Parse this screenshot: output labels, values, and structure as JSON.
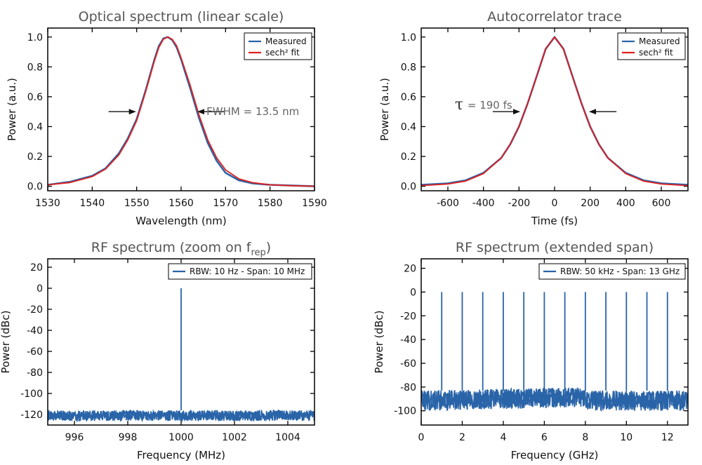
{
  "colors": {
    "measured": "#2a64a8",
    "fit": "#e02020",
    "arrow": "#111111",
    "frame": "#000000"
  },
  "chart_data": [
    {
      "type": "line",
      "title": "Optical spectrum (linear scale)",
      "xlabel": "Wavelength (nm)",
      "ylabel": "Power (a.u.)",
      "xlim": [
        1530,
        1590
      ],
      "ylim": [
        -0.03,
        1.06
      ],
      "xticks": [
        1530,
        1540,
        1550,
        1560,
        1570,
        1580,
        1590
      ],
      "yticks": [
        0.0,
        0.2,
        0.4,
        0.6,
        0.8,
        1.0
      ],
      "legend_position": "top-right",
      "series": [
        {
          "name": "Measured",
          "x": [
            1530,
            1535,
            1540,
            1543,
            1546,
            1548,
            1550,
            1552,
            1554,
            1555,
            1556,
            1557,
            1558,
            1559,
            1560,
            1562,
            1564,
            1566,
            1568,
            1570,
            1573,
            1576,
            1580,
            1585,
            1590
          ],
          "y": [
            0.01,
            0.03,
            0.07,
            0.12,
            0.22,
            0.32,
            0.45,
            0.64,
            0.85,
            0.94,
            0.99,
            1.0,
            0.98,
            0.93,
            0.85,
            0.66,
            0.46,
            0.29,
            0.17,
            0.09,
            0.04,
            0.02,
            0.01,
            0.005,
            0.0
          ]
        },
        {
          "name": "sech² fit",
          "x": [
            1530,
            1535,
            1540,
            1543,
            1546,
            1548,
            1550,
            1552,
            1554,
            1555,
            1556,
            1557,
            1558,
            1559,
            1560,
            1562,
            1564,
            1566,
            1568,
            1570,
            1573,
            1576,
            1580,
            1585,
            1590
          ],
          "y": [
            0.01,
            0.025,
            0.065,
            0.115,
            0.21,
            0.31,
            0.44,
            0.63,
            0.84,
            0.93,
            0.985,
            1.0,
            0.985,
            0.94,
            0.86,
            0.68,
            0.48,
            0.31,
            0.19,
            0.11,
            0.05,
            0.025,
            0.01,
            0.004,
            0.0
          ]
        }
      ],
      "annotation": {
        "text": "FWHM = 13.5 nm",
        "left_x": 1550,
        "right_x": 1563.5,
        "y": 0.5
      }
    },
    {
      "type": "line",
      "title": "Autocorrelator trace",
      "xlabel": "Time (fs)",
      "ylabel": "Power (a.u.)",
      "xlim": [
        -750,
        750
      ],
      "ylim": [
        -0.03,
        1.06
      ],
      "xticks": [
        -600,
        -400,
        -200,
        0,
        200,
        400,
        600
      ],
      "yticks": [
        0.0,
        0.2,
        0.4,
        0.6,
        0.8,
        1.0
      ],
      "legend_position": "top-right",
      "series": [
        {
          "name": "Measured",
          "x": [
            -750,
            -600,
            -500,
            -400,
            -300,
            -250,
            -200,
            -150,
            -100,
            -50,
            0,
            50,
            100,
            150,
            200,
            250,
            300,
            400,
            500,
            600,
            750
          ],
          "y": [
            0.01,
            0.02,
            0.04,
            0.09,
            0.19,
            0.28,
            0.4,
            0.56,
            0.74,
            0.92,
            1.0,
            0.92,
            0.74,
            0.56,
            0.4,
            0.28,
            0.19,
            0.09,
            0.04,
            0.02,
            0.01
          ]
        },
        {
          "name": "sech² fit",
          "x": [
            -750,
            -600,
            -500,
            -400,
            -300,
            -250,
            -200,
            -150,
            -100,
            -50,
            0,
            50,
            100,
            150,
            200,
            250,
            300,
            400,
            500,
            600,
            750
          ],
          "y": [
            0.005,
            0.015,
            0.035,
            0.085,
            0.19,
            0.28,
            0.4,
            0.56,
            0.74,
            0.92,
            1.0,
            0.92,
            0.74,
            0.56,
            0.4,
            0.28,
            0.19,
            0.085,
            0.035,
            0.015,
            0.005
          ]
        }
      ],
      "annotation": {
        "symbol": "τ",
        "text": "= 190 fs",
        "left_x": -190,
        "right_x": 190,
        "y": 0.5
      }
    },
    {
      "type": "line",
      "title": "RF spectrum (zoom on f",
      "title_sub": "rep",
      "title_end": ")",
      "xlabel": "Frequency (MHz)",
      "ylabel": "Power (dBc)",
      "xlim": [
        995,
        1005
      ],
      "ylim": [
        -130,
        28
      ],
      "xticks": [
        996,
        998,
        1000,
        1002,
        1004
      ],
      "yticks": [
        20,
        0,
        -20,
        -40,
        -60,
        -80,
        -100,
        -120
      ],
      "legend_position": "top-right",
      "series": [
        {
          "name": "RBW: 10 Hz - Span: 10 MHz",
          "noise_floor_min": -126,
          "noise_floor_max": -116,
          "peak_x": [
            1000
          ],
          "peak_y": [
            0
          ]
        }
      ]
    },
    {
      "type": "line",
      "title": "RF spectrum (extended span)",
      "xlabel": "Frequency (GHz)",
      "ylabel": "Power (dBc)",
      "xlim": [
        0,
        13
      ],
      "ylim": [
        -112,
        28
      ],
      "xticks": [
        0,
        2,
        4,
        6,
        8,
        10,
        12
      ],
      "yticks": [
        20,
        0,
        -20,
        -40,
        -60,
        -80,
        -100
      ],
      "legend_position": "top-right",
      "series": [
        {
          "name": "RBW: 50 kHz - Span: 13 GHz",
          "noise_floor_min": -100,
          "noise_floor_max": -83,
          "peak_x": [
            1,
            2,
            3,
            4,
            5,
            6,
            7,
            8,
            9,
            10,
            11,
            12
          ],
          "peak_y": [
            0,
            0,
            0,
            0,
            0,
            0,
            0,
            0,
            0,
            0,
            0,
            0
          ]
        }
      ]
    }
  ]
}
